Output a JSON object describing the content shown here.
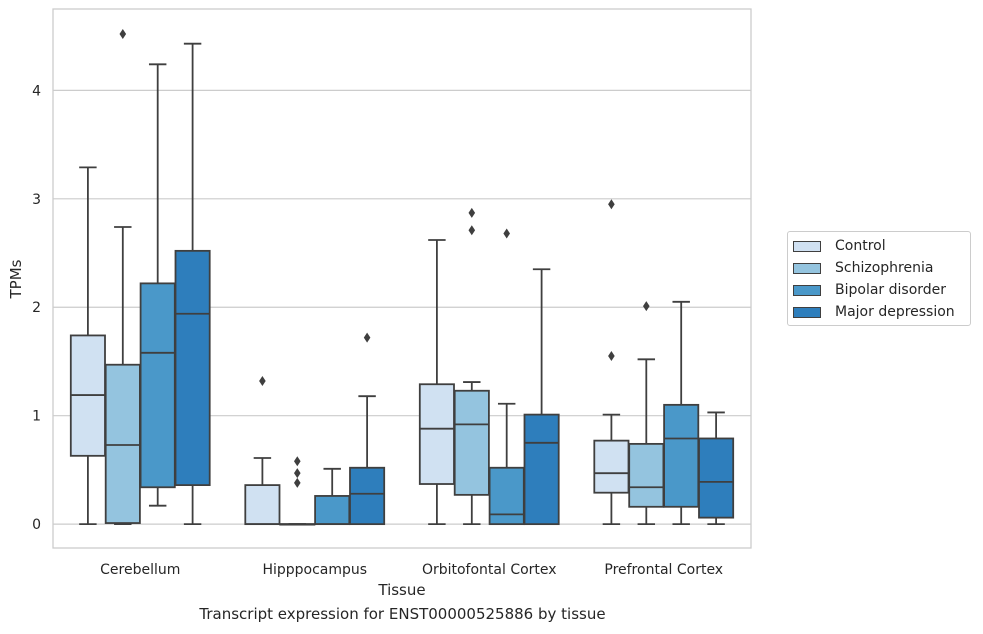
{
  "caption": "Transcript expression for ENST00000525886 by tissue",
  "chart_data": {
    "type": "box",
    "title": "",
    "xlabel": "Tissue",
    "ylabel": "TPMs",
    "ylim": [
      -0.22,
      4.75
    ],
    "yticks": [
      0,
      1,
      2,
      3,
      4
    ],
    "grid": "horizontal",
    "legend_position": "right",
    "categories": [
      "Cerebellum",
      "Hipppocampus",
      "Orbitofontal Cortex",
      "Prefrontal Cortex"
    ],
    "series": [
      {
        "name": "Control",
        "color": "#d0e1f2",
        "boxes": [
          {
            "whislo": 0.0,
            "q1": 0.63,
            "med": 1.19,
            "q3": 1.74,
            "whishi": 3.29,
            "fliers": []
          },
          {
            "whislo": 0.0,
            "q1": 0.0,
            "med": 0.0,
            "q3": 0.36,
            "whishi": 0.61,
            "fliers": [
              1.32
            ]
          },
          {
            "whislo": 0.0,
            "q1": 0.37,
            "med": 0.88,
            "q3": 1.29,
            "whishi": 2.62,
            "fliers": []
          },
          {
            "whislo": 0.0,
            "q1": 0.29,
            "med": 0.47,
            "q3": 0.77,
            "whishi": 1.01,
            "fliers": [
              1.55,
              2.95
            ]
          }
        ]
      },
      {
        "name": "Schizophrenia",
        "color": "#94c4df",
        "boxes": [
          {
            "whislo": 0.0,
            "q1": 0.01,
            "med": 0.73,
            "q3": 1.47,
            "whishi": 2.74,
            "fliers": [
              4.52
            ]
          },
          {
            "whislo": 0.0,
            "q1": 0.0,
            "med": 0.0,
            "q3": 0.0,
            "whishi": 0.0,
            "fliers": [
              0.38,
              0.47,
              0.58
            ]
          },
          {
            "whislo": 0.0,
            "q1": 0.27,
            "med": 0.92,
            "q3": 1.23,
            "whishi": 1.31,
            "fliers": [
              2.71,
              2.87
            ]
          },
          {
            "whislo": 0.0,
            "q1": 0.16,
            "med": 0.34,
            "q3": 0.74,
            "whishi": 1.52,
            "fliers": [
              2.01
            ]
          }
        ]
      },
      {
        "name": "Bipolar disorder",
        "color": "#4a98c9",
        "boxes": [
          {
            "whislo": 0.17,
            "q1": 0.34,
            "med": 1.58,
            "q3": 2.22,
            "whishi": 4.24,
            "fliers": []
          },
          {
            "whislo": 0.0,
            "q1": 0.0,
            "med": 0.0,
            "q3": 0.26,
            "whishi": 0.51,
            "fliers": []
          },
          {
            "whislo": 0.0,
            "q1": 0.0,
            "med": 0.09,
            "q3": 0.52,
            "whishi": 1.11,
            "fliers": [
              2.68
            ]
          },
          {
            "whislo": 0.0,
            "q1": 0.16,
            "med": 0.79,
            "q3": 1.1,
            "whishi": 2.05,
            "fliers": []
          }
        ]
      },
      {
        "name": "Major depression",
        "color": "#2e7ebc",
        "boxes": [
          {
            "whislo": 0.0,
            "q1": 0.36,
            "med": 1.94,
            "q3": 2.52,
            "whishi": 4.43,
            "fliers": []
          },
          {
            "whislo": 0.0,
            "q1": 0.0,
            "med": 0.28,
            "q3": 0.52,
            "whishi": 1.18,
            "fliers": [
              1.72
            ]
          },
          {
            "whislo": 0.0,
            "q1": 0.0,
            "med": 0.75,
            "q3": 1.01,
            "whishi": 2.35,
            "fliers": []
          },
          {
            "whislo": 0.0,
            "q1": 0.06,
            "med": 0.39,
            "q3": 0.79,
            "whishi": 1.03,
            "fliers": []
          }
        ]
      }
    ]
  }
}
